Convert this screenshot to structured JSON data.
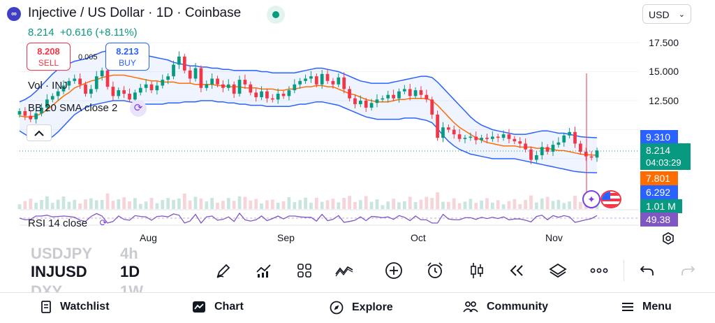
{
  "header": {
    "logo_glyph": "∞",
    "title": "Injective / US Dollar · 1D · Coinbase",
    "currency": "USD",
    "price": "8.214",
    "change": "+0.616 (+8.11%)"
  },
  "trade": {
    "sell_price": "8.208",
    "sell_label": "SELL",
    "spread": "0.005",
    "buy_price": "8.213",
    "buy_label": "BUY"
  },
  "indicators": {
    "vol_label": "Vol · INJ",
    "bb_label": "BB 20 SMA close 2",
    "rsi_label": "RSI 14 close"
  },
  "chart_data": {
    "type": "candlestick",
    "y_ticks": [
      "17.500",
      "15.000",
      "12.500"
    ],
    "x_ticks": [
      "Aug",
      "Sep",
      "Oct",
      "Nov"
    ],
    "price_labels": [
      {
        "value": "9.310",
        "color": "#2962ff"
      },
      {
        "value": "8.214",
        "sub": "04:03:29",
        "color": "#089981"
      },
      {
        "value": "7.801",
        "color": "#ff6d00"
      },
      {
        "value": "6.292",
        "color": "#2962ff"
      },
      {
        "value": "1.01 M",
        "color": "#089981"
      },
      {
        "value": "49.38",
        "color": "#7e57c2"
      }
    ],
    "closes": [
      11.6,
      11.2,
      10.9,
      11.4,
      11.9,
      12.6,
      12.9,
      13.3,
      13.8,
      14.2,
      14.4,
      13.9,
      13.1,
      13.5,
      14.6,
      15.1,
      13.7,
      12.9,
      13.4,
      13.1,
      12.6,
      13.2,
      13.6,
      13.9,
      13.4,
      13.8,
      14.3,
      14.6,
      15.6,
      16.3,
      15.1,
      14.4,
      15.3,
      13.6,
      13.9,
      14.4,
      13.9,
      13.6,
      13.9,
      13.1,
      14.3,
      13.9,
      13.2,
      12.8,
      13.3,
      12.7,
      12.6,
      13.1,
      12.9,
      13.4,
      13.9,
      14.2,
      14.4,
      14.6,
      13.9,
      14.8,
      14.2,
      13.9,
      14.5,
      13.5,
      12.7,
      12.2,
      12.5,
      11.9,
      12.3,
      12.6,
      12.7,
      13.0,
      12.7,
      13.3,
      13.5,
      12.9,
      13.4,
      13.0,
      12.6,
      11.3,
      9.3,
      10.2,
      10.0,
      9.6,
      9.2,
      9.3,
      9.4,
      9.1,
      9.3,
      9.2,
      9.4,
      9.3,
      9.6,
      9.2,
      9.0,
      8.8,
      8.3,
      7.4,
      7.8,
      8.5,
      8.1,
      8.7,
      8.9,
      9.5,
      9.8,
      8.8,
      8.1,
      7.7,
      7.6,
      8.21
    ],
    "bb_upper": [
      12.4,
      12.6,
      12.9,
      13.3,
      13.8,
      14.3,
      14.8,
      15.2,
      15.5,
      15.7,
      15.9,
      16.0,
      16.1,
      16.3,
      16.5,
      16.7,
      16.8,
      16.9,
      16.9,
      16.9,
      16.8,
      16.7,
      16.6,
      16.4,
      16.3,
      16.2,
      16.1,
      16.0,
      15.8,
      15.7,
      15.6,
      15.5,
      15.5,
      15.4,
      15.4,
      15.3,
      15.3,
      15.2,
      15.2,
      15.1,
      15.1,
      15.1,
      15.1,
      15.1,
      15.0,
      15.0,
      14.9,
      14.9,
      14.9,
      14.9,
      14.9,
      15.0,
      15.1,
      15.2,
      15.3,
      15.3,
      15.2,
      15.1,
      15.0,
      14.8,
      14.6,
      14.4,
      14.2,
      14.1,
      14.0,
      14.0,
      14.0,
      14.0,
      14.1,
      14.2,
      14.3,
      14.4,
      14.5,
      14.6,
      14.6,
      14.5,
      14.1,
      13.6,
      13.1,
      12.6,
      12.1,
      11.6,
      11.1,
      10.7,
      10.4,
      10.2,
      10.0,
      9.9,
      9.8,
      9.7,
      9.6,
      9.6,
      9.6,
      9.7,
      9.8,
      9.9,
      9.9,
      9.8,
      9.7,
      9.7,
      9.6,
      9.5,
      9.4,
      9.35,
      9.33,
      9.31
    ],
    "bb_lower": [
      9.9,
      9.6,
      9.3,
      9.1,
      9.1,
      9.2,
      9.4,
      9.8,
      10.3,
      10.8,
      11.3,
      11.6,
      11.9,
      12.1,
      12.2,
      12.3,
      12.4,
      12.5,
      12.5,
      12.5,
      12.4,
      12.3,
      12.3,
      12.2,
      12.2,
      12.2,
      12.2,
      12.3,
      12.3,
      12.3,
      12.4,
      12.4,
      12.4,
      12.5,
      12.5,
      12.5,
      12.4,
      12.4,
      12.3,
      12.3,
      12.2,
      12.2,
      12.1,
      12.1,
      12.1,
      12.0,
      12.0,
      12.0,
      12.0,
      12.0,
      12.1,
      12.2,
      12.2,
      12.3,
      12.4,
      12.4,
      12.3,
      12.2,
      12.1,
      11.9,
      11.7,
      11.5,
      11.3,
      11.1,
      11.0,
      10.9,
      10.9,
      10.9,
      10.9,
      10.9,
      11.0,
      11.0,
      11.0,
      10.9,
      10.8,
      10.6,
      10.1,
      9.5,
      9.0,
      8.6,
      8.3,
      8.1,
      7.9,
      7.8,
      7.7,
      7.6,
      7.5,
      7.5,
      7.5,
      7.5,
      7.5,
      7.4,
      7.3,
      7.2,
      7.1,
      7.0,
      6.9,
      6.8,
      6.7,
      6.6,
      6.5,
      6.4,
      6.35,
      6.31,
      6.3,
      6.292
    ],
    "bb_basis": [
      11.2,
      11.1,
      11.1,
      11.2,
      11.4,
      11.7,
      12.1,
      12.5,
      12.9,
      13.2,
      13.6,
      13.8,
      14.0,
      14.2,
      14.3,
      14.5,
      14.6,
      14.7,
      14.7,
      14.7,
      14.6,
      14.5,
      14.4,
      14.3,
      14.2,
      14.2,
      14.1,
      14.1,
      14.1,
      14.0,
      14.0,
      14.0,
      13.9,
      13.9,
      13.9,
      13.9,
      13.8,
      13.8,
      13.7,
      13.7,
      13.7,
      13.6,
      13.6,
      13.6,
      13.5,
      13.5,
      13.5,
      13.4,
      13.4,
      13.5,
      13.5,
      13.6,
      13.7,
      13.7,
      13.8,
      13.8,
      13.7,
      13.7,
      13.5,
      13.3,
      13.1,
      13.0,
      12.8,
      12.6,
      12.5,
      12.4,
      12.4,
      12.4,
      12.5,
      12.6,
      12.6,
      12.7,
      12.7,
      12.7,
      12.7,
      12.5,
      12.1,
      11.6,
      11.1,
      10.6,
      10.2,
      9.9,
      9.6,
      9.3,
      9.1,
      8.9,
      8.8,
      8.7,
      8.6,
      8.6,
      8.6,
      8.5,
      8.5,
      8.5,
      8.4,
      8.4,
      8.4,
      8.3,
      8.2,
      8.2,
      8.1,
      8.0,
      7.9,
      7.85,
      7.82,
      7.801
    ]
  },
  "symbols": {
    "above": "USDJPY",
    "above_tf": "4h",
    "current": "INJUSD",
    "current_tf": "1D",
    "below": "DXY",
    "below_tf": "1W"
  },
  "toolbar": [
    "pen-icon",
    "chart-indicators-icon",
    "grid-icon",
    "patterns-icon",
    "plus-circle-icon",
    "alarm-icon",
    "candles-icon",
    "rewind-icon",
    "layers-icon",
    "more-icon",
    "undo-icon",
    "redo-icon"
  ],
  "nav": {
    "watchlist": "Watchlist",
    "chart": "Chart",
    "explore": "Explore",
    "community": "Community",
    "menu": "Menu"
  }
}
